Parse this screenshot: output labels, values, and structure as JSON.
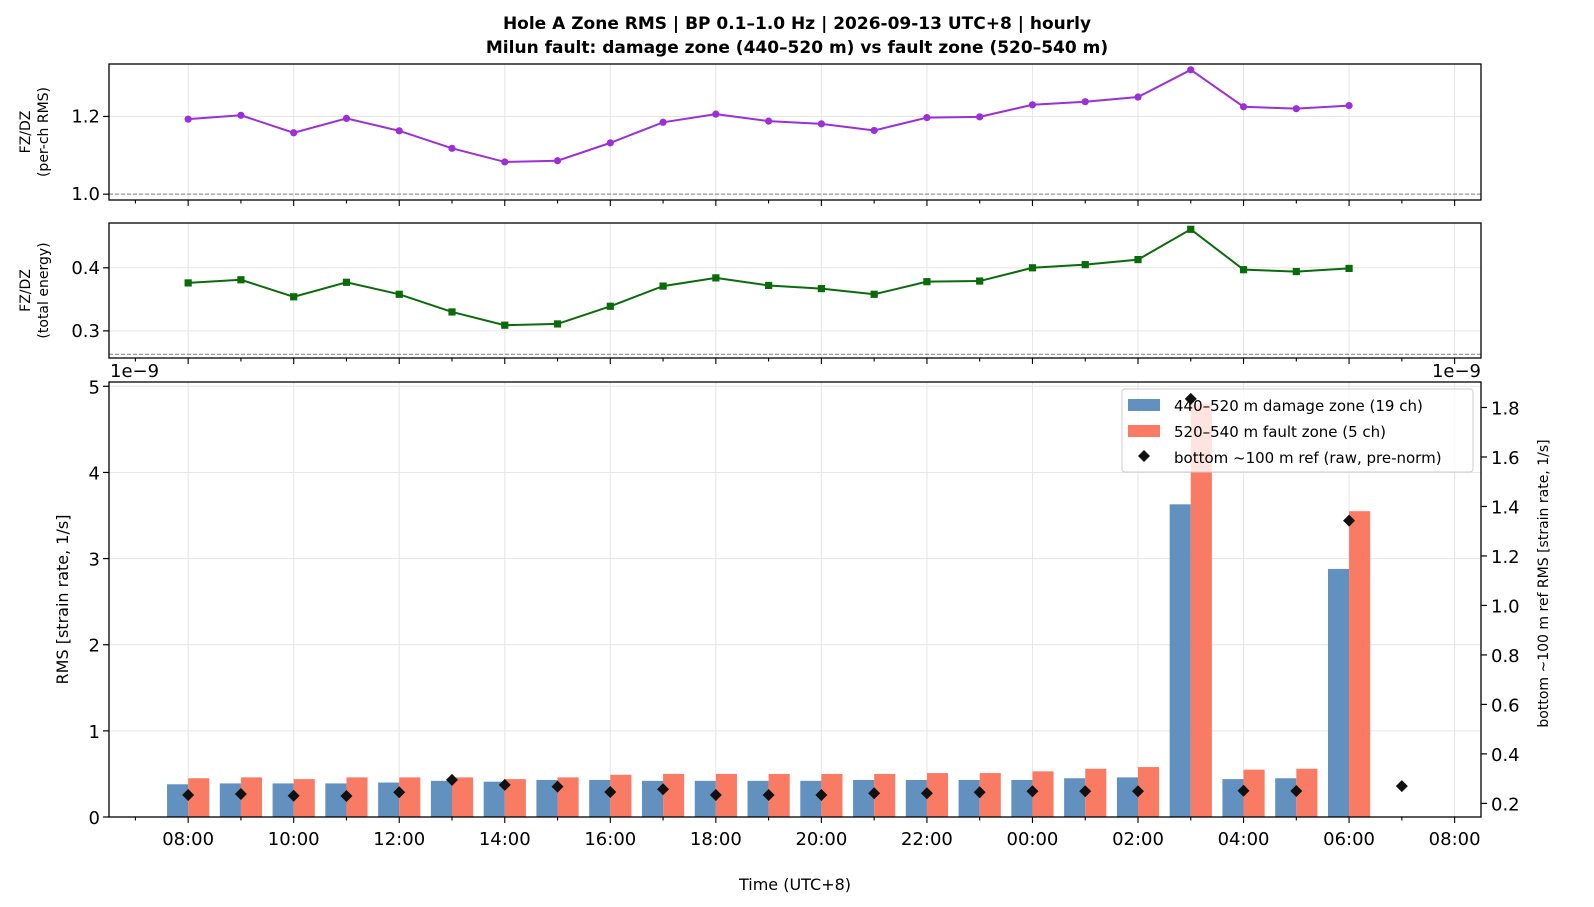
{
  "title": {
    "line1": "Hole A Zone RMS  |  BP 0.1–1.0 Hz  |  2026-09-13 UTC+8  |  hourly",
    "line2": "Milun fault: damage zone (440–520 m) vs fault zone (520–540 m)"
  },
  "chart_data": [
    {
      "type": "line",
      "ylabel": [
        "FZ/DZ",
        "(per-ch RMS)"
      ],
      "x": [
        "08:00",
        "09:00",
        "10:00",
        "11:00",
        "12:00",
        "13:00",
        "14:00",
        "15:00",
        "16:00",
        "17:00",
        "18:00",
        "19:00",
        "20:00",
        "21:00",
        "22:00",
        "23:00",
        "00:00",
        "01:00",
        "02:00",
        "03:00",
        "04:00",
        "05:00",
        "06:00"
      ],
      "values": [
        1.193,
        1.203,
        1.158,
        1.195,
        1.163,
        1.118,
        1.083,
        1.086,
        1.132,
        1.185,
        1.206,
        1.188,
        1.181,
        1.164,
        1.197,
        1.199,
        1.23,
        1.238,
        1.25,
        1.32,
        1.225,
        1.22,
        1.228
      ],
      "ylim": [
        0.985,
        1.335
      ],
      "yticks": [
        1.0,
        1.2
      ],
      "ytick_labels": [
        "1.0",
        "1.2"
      ],
      "reference_line": 1.0,
      "color": "#9b30d9",
      "marker": "circle",
      "grid": true
    },
    {
      "type": "line",
      "ylabel": [
        "FZ/DZ",
        "(total energy)"
      ],
      "x": [
        "08:00",
        "09:00",
        "10:00",
        "11:00",
        "12:00",
        "13:00",
        "14:00",
        "15:00",
        "16:00",
        "17:00",
        "18:00",
        "19:00",
        "20:00",
        "21:00",
        "22:00",
        "23:00",
        "00:00",
        "01:00",
        "02:00",
        "03:00",
        "04:00",
        "05:00",
        "06:00"
      ],
      "values": [
        0.376,
        0.381,
        0.354,
        0.377,
        0.358,
        0.33,
        0.309,
        0.311,
        0.339,
        0.371,
        0.384,
        0.372,
        0.367,
        0.358,
        0.378,
        0.379,
        0.4,
        0.405,
        0.413,
        0.461,
        0.397,
        0.394,
        0.399
      ],
      "ylim": [
        0.257,
        0.471
      ],
      "yticks": [
        0.3,
        0.4
      ],
      "ytick_labels": [
        "0.3",
        "0.4"
      ],
      "reference_line": 0.263,
      "color": "#0a6b0a",
      "marker": "square",
      "grid": true
    },
    {
      "type": "bar",
      "xlabel": "Time (UTC+8)",
      "ylabel": "RMS  [strain rate, 1/s]",
      "ylabel_right": "bottom ~100 m ref RMS  [strain rate, 1/s]",
      "offset_left": "1e−9",
      "offset_right": "1e−9",
      "x": [
        "08:00",
        "09:00",
        "10:00",
        "11:00",
        "12:00",
        "13:00",
        "14:00",
        "15:00",
        "16:00",
        "17:00",
        "18:00",
        "19:00",
        "20:00",
        "21:00",
        "22:00",
        "23:00",
        "00:00",
        "01:00",
        "02:00",
        "03:00",
        "04:00",
        "05:00",
        "06:00",
        "07:00"
      ],
      "xtick_labels": [
        "08:00",
        "10:00",
        "12:00",
        "14:00",
        "16:00",
        "18:00",
        "20:00",
        "22:00",
        "00:00",
        "02:00",
        "04:00",
        "06:00",
        "08:00"
      ],
      "ylim": [
        0,
        5.05
      ],
      "yticks": [
        0,
        1,
        2,
        3,
        4,
        5
      ],
      "ytick_labels": [
        "0",
        "1",
        "2",
        "3",
        "4",
        "5"
      ],
      "ylim_right": [
        0.145,
        1.903
      ],
      "yticks_right": [
        0.2,
        0.4,
        0.6,
        0.8,
        1.0,
        1.2,
        1.4,
        1.6,
        1.8
      ],
      "ytick_labels_right": [
        "0.2",
        "0.4",
        "0.6",
        "0.8",
        "1.0",
        "1.2",
        "1.4",
        "1.6",
        "1.8"
      ],
      "series": [
        {
          "name": "440–520 m  damage zone (19 ch)",
          "color": "#6291c0",
          "values": [
            0.38,
            0.39,
            0.39,
            0.39,
            0.4,
            0.42,
            0.41,
            0.43,
            0.43,
            0.42,
            0.42,
            0.42,
            0.42,
            0.43,
            0.43,
            0.43,
            0.43,
            0.45,
            0.46,
            3.63,
            0.44,
            0.45,
            2.88,
            null
          ]
        },
        {
          "name": "520–540 m  fault zone (5 ch)",
          "color": "#fa7b63",
          "values": [
            0.45,
            0.46,
            0.44,
            0.46,
            0.46,
            0.46,
            0.44,
            0.46,
            0.49,
            0.5,
            0.5,
            0.5,
            0.5,
            0.5,
            0.51,
            0.51,
            0.53,
            0.56,
            0.58,
            4.8,
            0.55,
            0.56,
            3.55,
            null
          ]
        },
        {
          "name": "bottom ~100 m ref (raw, pre-norm)",
          "color": "#111111",
          "axis": "right",
          "marker": "diamond",
          "values": [
            0.234,
            0.238,
            0.231,
            0.23,
            0.245,
            0.295,
            0.275,
            0.268,
            0.246,
            0.257,
            0.234,
            0.234,
            0.234,
            0.241,
            0.241,
            0.245,
            0.249,
            0.249,
            0.249,
            1.835,
            0.251,
            0.25,
            1.343,
            0.27
          ]
        }
      ],
      "legend_position": "upper-right",
      "grid": true
    }
  ]
}
